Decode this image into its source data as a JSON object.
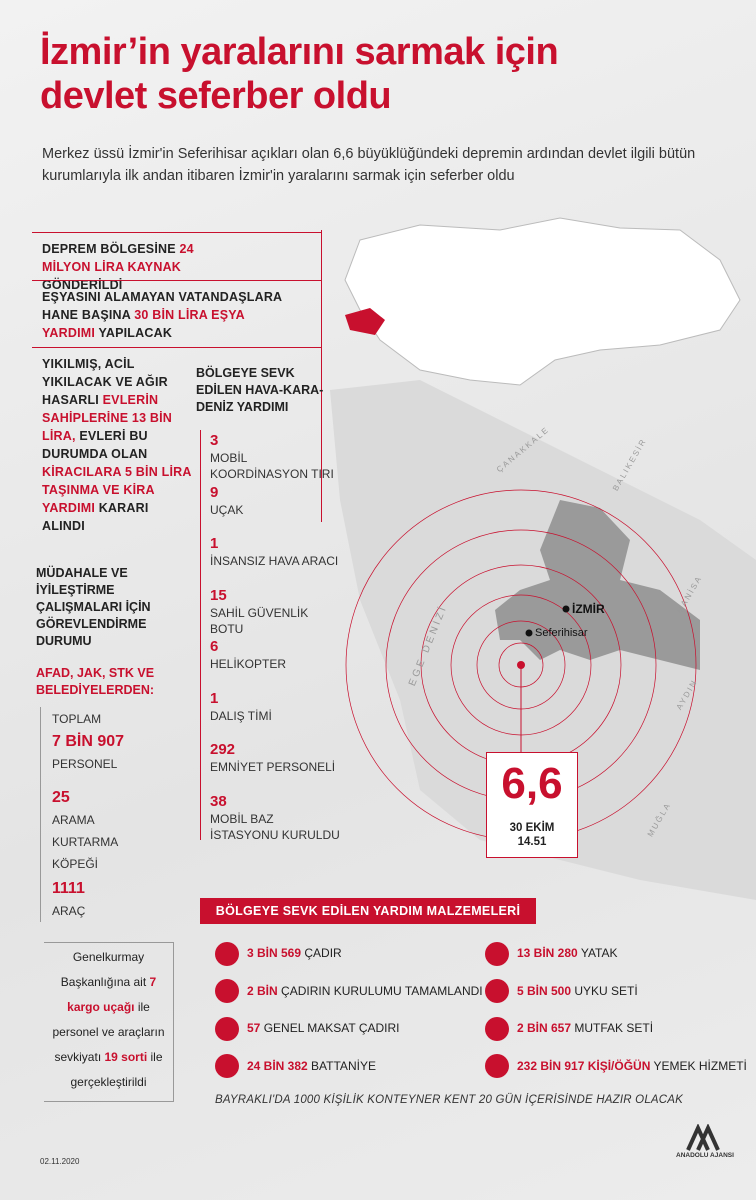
{
  "header": {
    "title": "İzmir’in yaralarını sarmak için devlet seferber oldu",
    "subtitle": "Merkez üssü İzmir'in Seferihisar açıkları olan 6,6 büyüklüğündeki depremin ardından devlet ilgili bütün kurumlarıyla ilk andan itibaren İzmir'in yaralarını sarmak için seferber oldu"
  },
  "measures": [
    {
      "parts": [
        "DEPREM BÖLGESİNE ",
        "24 MİLYON LİRA KAYNAK",
        " GÖNDERİLDİ"
      ]
    },
    {
      "parts": [
        "EŞYASINI ALAMAYAN VATANDAŞLARA HANE BAŞINA ",
        "30 BİN LİRA EŞYA YARDIMI",
        " YAPILACAK"
      ]
    },
    {
      "parts": [
        "YIKILMIŞ, ACİL YIKILACAK VE AĞIR HASARLI ",
        "EVLERİN SAHİPLERİNE 13 BİN LİRA,",
        " EVLERİ BU DURUMDA OLAN ",
        "KİRACILARA 5 BİN LİRA TAŞINMA VE KİRA YARDIMI",
        " KARARI ALINDI"
      ]
    }
  ],
  "dispatch": {
    "title": "BÖLGEYE SEVK EDİLEN HAVA-KARA-DENİZ YARDIMI",
    "items": [
      {
        "value": 3,
        "label": "MOBİL KOORDİNASYON TIRI"
      },
      {
        "value": 9,
        "label": "UÇAK"
      },
      {
        "value": 1,
        "label": "İNSANSIZ HAVA ARACI"
      },
      {
        "value": 15,
        "label": "SAHİL GÜVENLİK BOTU"
      },
      {
        "value": 6,
        "label": "HELİKOPTER"
      },
      {
        "value": 1,
        "label": "DALIŞ TİMİ"
      },
      {
        "value": 292,
        "label": "EMNİYET PERSONELİ"
      },
      {
        "value": 38,
        "label": "MOBİL BAZ İSTASYONU KURULDU"
      }
    ]
  },
  "personnel": {
    "title": "MÜDAHALE VE İYİLEŞTİRME ÇALIŞMALARI İÇİN GÖREVLENDİRME DURUMU",
    "source": "AFAD, JAK, STK VE BELEDİYELERDEN:",
    "prefix": "TOPLAM",
    "items": [
      {
        "value": "7 BİN 907",
        "label": "PERSONEL"
      },
      {
        "value": 25,
        "label": "ARAMA KURTARMA KÖPEĞİ"
      },
      {
        "value": 1111,
        "label": "ARAÇ"
      }
    ]
  },
  "military": {
    "parts": [
      "Genelkurmay Başkanlığına ait ",
      "7 kargo uçağı",
      " ile personel ve araçların sevkiyatı ",
      "19 sorti",
      " ile gerçekleştirildi"
    ]
  },
  "quake": {
    "magnitude": "6,6",
    "date": "30 EKİM",
    "time": "14.51"
  },
  "map_labels": {
    "city": "İZMİR",
    "epicenter": "Seferihisar",
    "sea": "EGE DENİZİ",
    "canakkale": "ÇANAKKALE",
    "balikesir": "BALIKESİR",
    "manisa": "MANİSA",
    "aydin": "AYDIN",
    "mugla": "MUĞLA"
  },
  "supplies": {
    "title": "BÖLGEYE SEVK EDİLEN YARDIM MALZEMELERİ",
    "items": [
      {
        "amount": "3 BİN 569",
        "label": "ÇADIR"
      },
      {
        "amount": "2 BİN",
        "label": "ÇADIRIN KURULUMU TAMAMLANDI"
      },
      {
        "amount": "57",
        "label": "GENEL MAKSAT ÇADIRI"
      },
      {
        "amount": "24 BİN 382",
        "label": "BATTANİYE"
      },
      {
        "amount": "13 BİN 280",
        "label": "YATAK"
      },
      {
        "amount": "5 BİN 500",
        "label": "UYKU SETİ"
      },
      {
        "amount": "2 BİN 657",
        "label": "MUTFAK SETİ"
      },
      {
        "amount": "232 BİN 917 KİŞİ/ÖĞÜN",
        "label": "YEMEK HİZMETİ"
      }
    ],
    "note": "BAYRAKLI'DA 1000 KİŞİLİK KONTEYNER KENT 20 GÜN İÇERİSİNDE HAZIR OLACAK"
  },
  "footer": {
    "date": "02.11.2020",
    "agency": "ANADOLU AJANSI"
  }
}
